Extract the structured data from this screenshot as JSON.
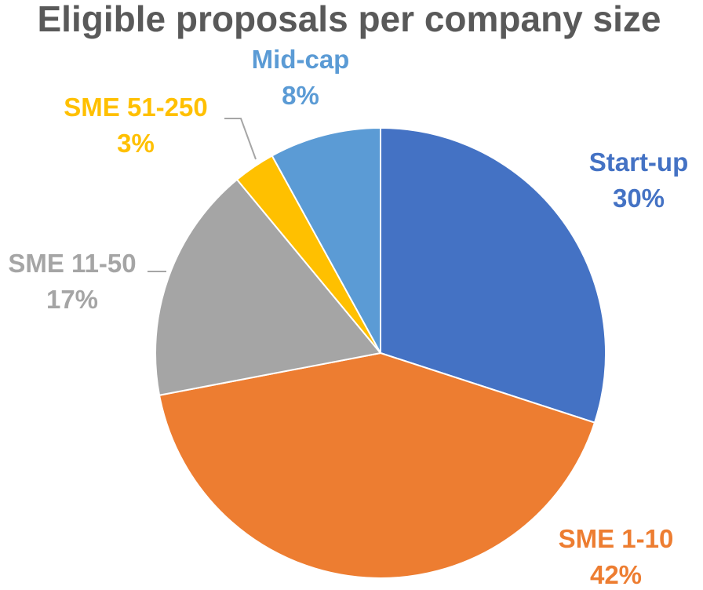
{
  "chart_data": {
    "type": "pie",
    "title": "Eligible proposals per company size",
    "legend": "none",
    "start_angle_deg": 0,
    "direction": "clockwise",
    "slices": [
      {
        "label": "Start-up",
        "value": 30,
        "display": "30%",
        "color": "#4472C4"
      },
      {
        "label": "SME 1-10",
        "value": 42,
        "display": "42%",
        "color": "#ED7D31"
      },
      {
        "label": "SME 11-50",
        "value": 17,
        "display": "17%",
        "color": "#A5A5A5"
      },
      {
        "label": "SME 51-250",
        "value": 3,
        "display": "3%",
        "color": "#FFC000"
      },
      {
        "label": "Mid-cap",
        "value": 8,
        "display": "8%",
        "color": "#5B9BD5"
      }
    ],
    "title_color": "#595959",
    "leader_line_color": "#A6A6A6"
  }
}
